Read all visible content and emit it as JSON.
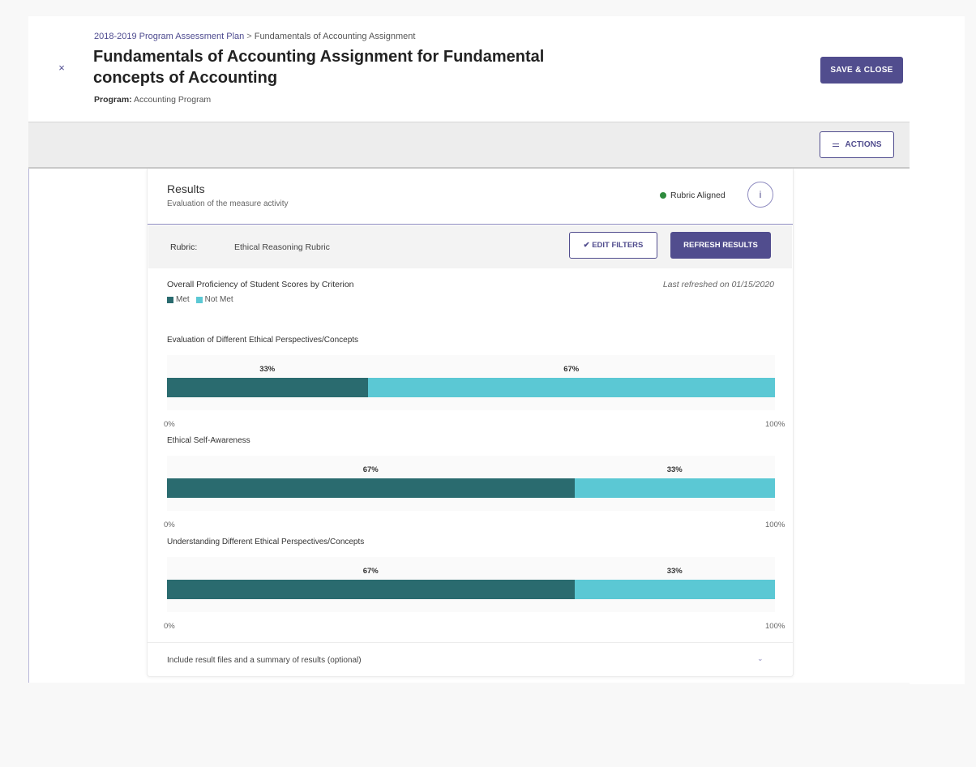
{
  "header": {
    "breadcrumb": [
      "2018-2019 Program Assessment Plan",
      "Fundamentals of Accounting Assignment"
    ],
    "breadcrumb_separator": ">",
    "title": "Fundamentals of Accounting Assignment for Fundamental concepts of Accounting",
    "program_label": "Program:",
    "program_value": "Accounting Program",
    "save_close_label": "SAVE & CLOSE",
    "close_glyph": "×"
  },
  "toolbar": {
    "actions_label": "ACTIONS"
  },
  "results": {
    "title": "Results",
    "subtitle": "Evaluation of the measure activity",
    "status": "Rubric Aligned",
    "status_color": "#2e8b3d",
    "info_glyph": "i",
    "rubric_label": "Rubric:",
    "rubric_value": "Ethical Reasoning Rubric",
    "edit_filters_label": "✔ EDIT FILTERS",
    "refresh_label": "REFRESH RESULTS",
    "optional_text": "Include result files and a summary of results (optional)",
    "chevron_glyph": "⌄"
  },
  "chart_data": {
    "type": "bar",
    "stacked": true,
    "orientation": "horizontal",
    "title": "Overall Proficiency of Student Scores by Criterion",
    "last_refreshed": "Last refreshed on 01/15/2020",
    "legend": [
      {
        "name": "Met",
        "color": "#2a6b6f"
      },
      {
        "name": "Not Met",
        "color": "#5bc8d4"
      }
    ],
    "xlim": [
      0,
      100
    ],
    "axis_min_label": "0%",
    "axis_max_label": "100%",
    "criteria": [
      {
        "name": "Evaluation of Different Ethical Perspectives/Concepts",
        "met": 33,
        "not_met": 67,
        "met_label": "33%",
        "not_met_label": "67%"
      },
      {
        "name": "Ethical Self-Awareness",
        "met": 67,
        "not_met": 33,
        "met_label": "67%",
        "not_met_label": "33%"
      },
      {
        "name": "Understanding Different Ethical Perspectives/Concepts",
        "met": 67,
        "not_met": 33,
        "met_label": "67%",
        "not_met_label": "33%"
      }
    ]
  }
}
